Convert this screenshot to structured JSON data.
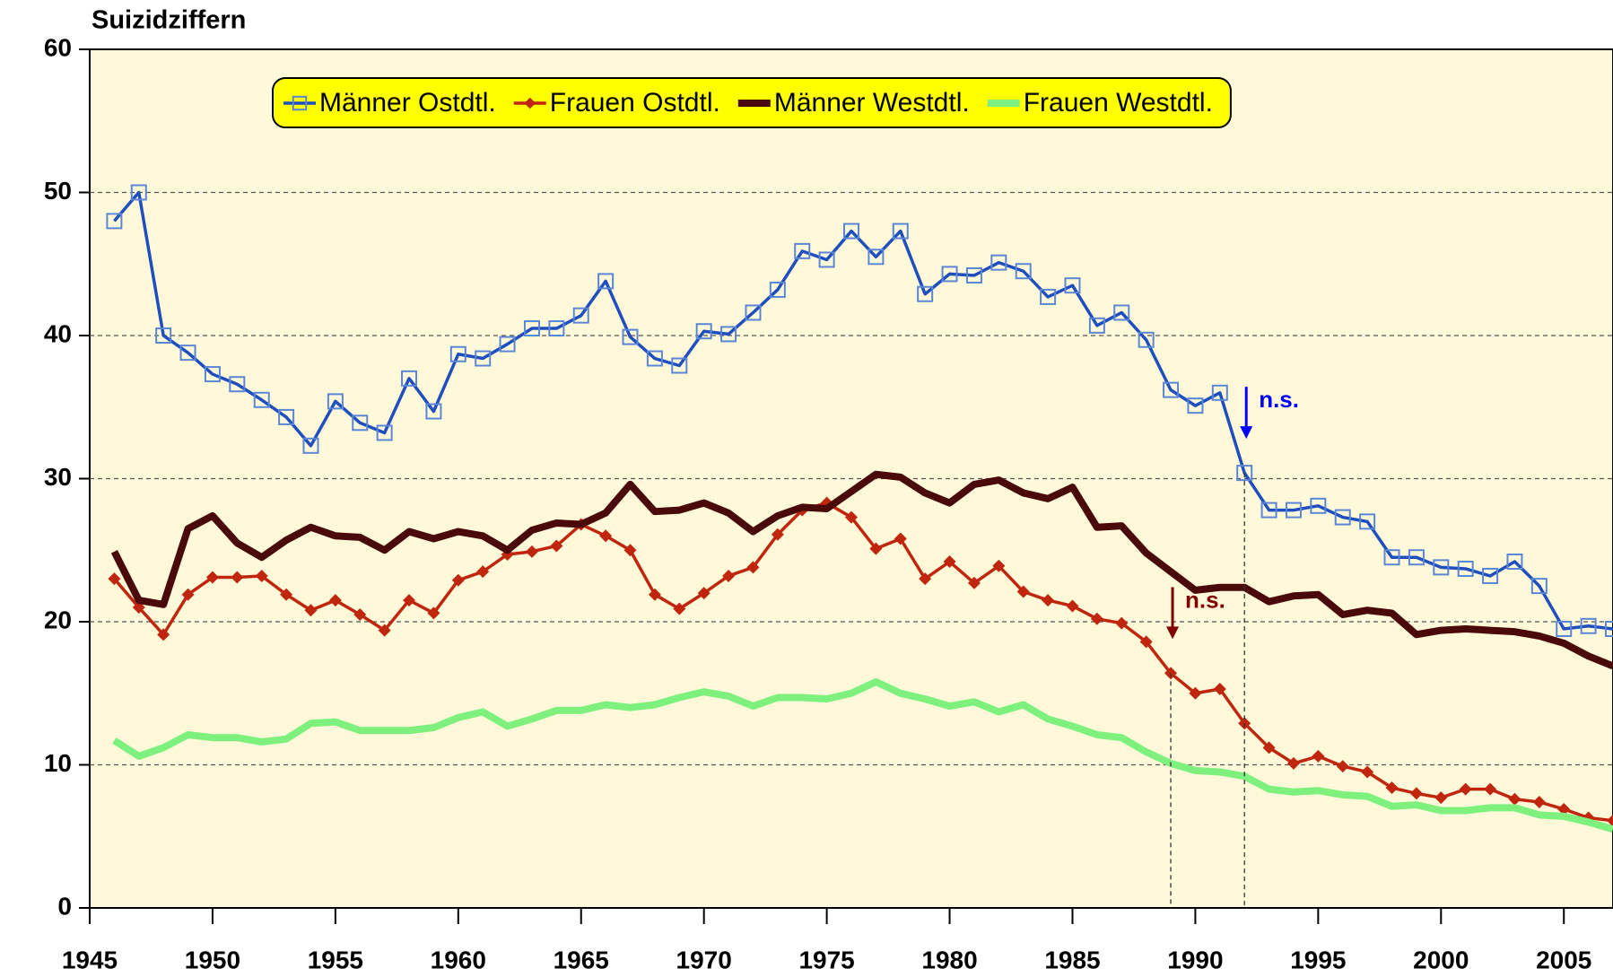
{
  "chart_data": {
    "type": "line",
    "title": "Suizidziffern",
    "xlim": [
      1945,
      2007
    ],
    "xticks": [
      1945,
      1950,
      1955,
      1960,
      1965,
      1970,
      1975,
      1980,
      1985,
      1990,
      1995,
      2000,
      2005
    ],
    "ylim": [
      0,
      60
    ],
    "yticks": [
      0,
      10,
      20,
      30,
      40,
      50,
      60
    ],
    "grid": true,
    "legend": "top",
    "x": [
      1946,
      1947,
      1948,
      1949,
      1950,
      1951,
      1952,
      1953,
      1954,
      1955,
      1956,
      1957,
      1958,
      1959,
      1960,
      1961,
      1962,
      1963,
      1964,
      1965,
      1966,
      1967,
      1968,
      1969,
      1970,
      1971,
      1972,
      1973,
      1974,
      1975,
      1976,
      1977,
      1978,
      1979,
      1980,
      1981,
      1982,
      1983,
      1984,
      1985,
      1986,
      1987,
      1988,
      1989,
      1990,
      1991,
      1992,
      1993,
      1994,
      1995,
      1996,
      1997,
      1998,
      1999,
      2000,
      2001,
      2002,
      2003,
      2004,
      2005,
      2006,
      2007
    ],
    "series": [
      {
        "name": "Männer Ostdtl.",
        "color": "#1f4fbf",
        "marker": "square",
        "values": [
          48.0,
          50.0,
          40.0,
          38.8,
          37.3,
          36.6,
          35.5,
          34.3,
          32.3,
          35.4,
          33.9,
          33.2,
          37.0,
          34.7,
          38.7,
          38.4,
          39.4,
          40.5,
          40.5,
          41.4,
          43.8,
          39.9,
          38.4,
          37.9,
          40.3,
          40.1,
          41.6,
          43.2,
          45.9,
          45.3,
          47.3,
          45.5,
          47.3,
          42.9,
          44.3,
          44.2,
          45.1,
          44.5,
          42.7,
          43.5,
          40.7,
          41.6,
          39.7,
          36.2,
          35.1,
          36.0,
          30.4,
          27.8,
          27.8,
          28.1,
          27.3,
          27.0,
          24.5,
          24.5,
          23.8,
          23.7,
          23.2,
          24.2,
          22.5,
          19.5,
          19.7,
          19.5
        ]
      },
      {
        "name": "Frauen Ostdtl.",
        "color": "#c0260e",
        "marker": "diamond",
        "values": [
          23.0,
          21.0,
          19.1,
          21.9,
          23.1,
          23.1,
          23.2,
          21.9,
          20.8,
          21.5,
          20.5,
          19.4,
          21.5,
          20.6,
          22.9,
          23.5,
          24.7,
          24.9,
          25.3,
          26.8,
          26.0,
          25.0,
          21.9,
          20.9,
          22.0,
          23.2,
          23.8,
          26.1,
          27.8,
          28.3,
          27.3,
          25.1,
          25.8,
          23.0,
          24.2,
          22.7,
          23.9,
          22.1,
          21.5,
          21.1,
          20.2,
          19.9,
          18.6,
          16.4,
          15.0,
          15.3,
          12.9,
          11.2,
          10.1,
          10.6,
          9.9,
          9.5,
          8.4,
          8.0,
          7.7,
          8.3,
          8.3,
          7.6,
          7.4,
          6.9,
          6.3,
          6.1
        ]
      },
      {
        "name": "Männer Westdtl.",
        "color": "#4a0a0a",
        "marker": "none",
        "values": [
          24.9,
          21.5,
          21.2,
          26.5,
          27.4,
          25.5,
          24.5,
          25.7,
          26.6,
          26.0,
          25.9,
          25.0,
          26.3,
          25.8,
          26.3,
          26.0,
          25.0,
          26.4,
          26.9,
          26.8,
          27.6,
          29.6,
          27.7,
          27.8,
          28.3,
          27.6,
          26.3,
          27.4,
          28.0,
          27.9,
          29.1,
          30.3,
          30.1,
          29.0,
          28.3,
          29.6,
          29.9,
          29.0,
          28.6,
          29.4,
          26.6,
          26.7,
          24.8,
          23.5,
          22.2,
          22.4,
          22.4,
          21.4,
          21.8,
          21.9,
          20.5,
          20.8,
          20.6,
          19.1,
          19.4,
          19.5,
          19.4,
          19.3,
          19.0,
          18.5,
          17.6,
          16.9
        ]
      },
      {
        "name": "Frauen Westdtl.",
        "color": "#7ef07e",
        "marker": "none",
        "values": [
          11.7,
          10.6,
          11.2,
          12.1,
          11.9,
          11.9,
          11.6,
          11.8,
          12.9,
          13.0,
          12.4,
          12.4,
          12.4,
          12.6,
          13.3,
          13.7,
          12.7,
          13.2,
          13.8,
          13.8,
          14.2,
          14.0,
          14.2,
          14.7,
          15.1,
          14.8,
          14.1,
          14.7,
          14.7,
          14.6,
          15.0,
          15.8,
          15.0,
          14.6,
          14.1,
          14.4,
          13.7,
          14.2,
          13.2,
          12.7,
          12.1,
          11.9,
          10.9,
          10.1,
          9.6,
          9.5,
          9.2,
          8.3,
          8.1,
          8.2,
          7.9,
          7.8,
          7.1,
          7.2,
          6.8,
          6.8,
          7.0,
          7.0,
          6.5,
          6.4,
          6.0,
          5.5
        ]
      }
    ],
    "annotations": [
      {
        "text": "n.s.",
        "x": 1992,
        "y": 30.4,
        "color": "#0000ff"
      },
      {
        "text": "n.s.",
        "x": 1989,
        "y": 16.4,
        "color": "#800000"
      }
    ]
  }
}
